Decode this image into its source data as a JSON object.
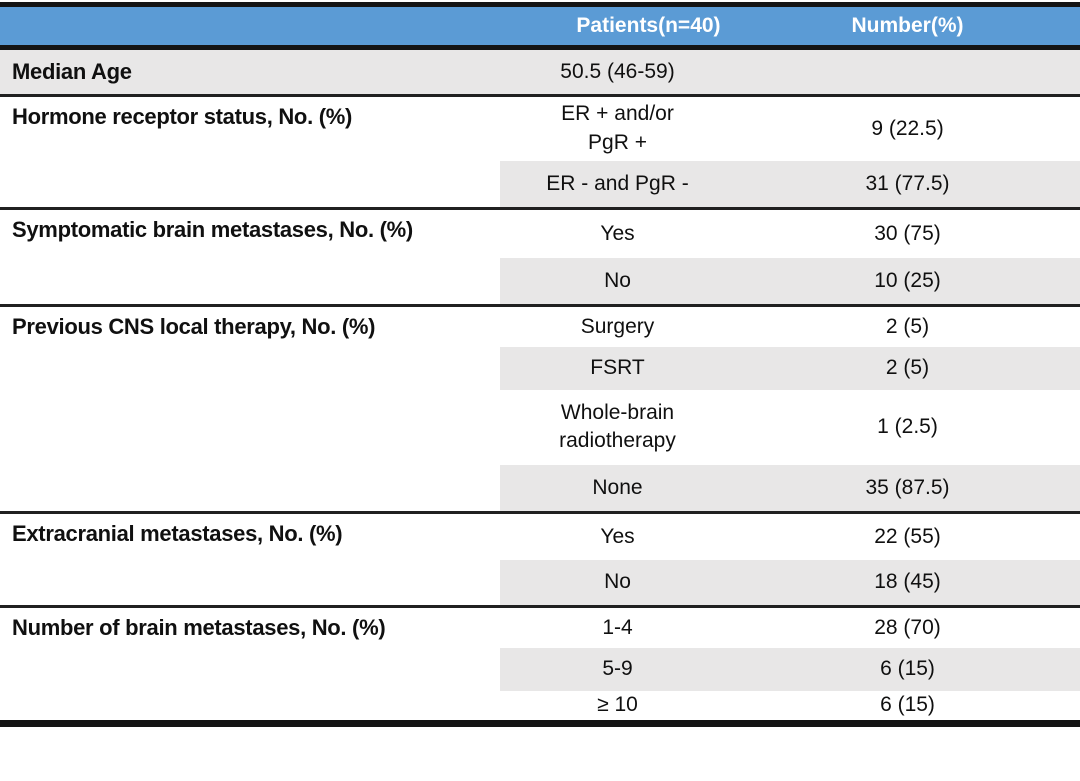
{
  "table": {
    "header": {
      "col1": "",
      "patients": "Patients(n=40)",
      "number": "Number(%)"
    },
    "groups": [
      {
        "label": "Median Age",
        "rows": [
          {
            "value": "50.5 (46-59)",
            "number": ""
          }
        ]
      },
      {
        "label": "Hormone receptor status, No. (%)",
        "rows": [
          {
            "value": "ER + and/or\nPgR +",
            "number": "9 (22.5)"
          },
          {
            "value": "ER - and PgR -",
            "number": "31 (77.5)"
          }
        ]
      },
      {
        "label": "Symptomatic brain metastases, No. (%)",
        "rows": [
          {
            "value": "Yes",
            "number": "30 (75)"
          },
          {
            "value": "No",
            "number": "10 (25)"
          }
        ]
      },
      {
        "label": "Previous CNS local therapy, No. (%)",
        "rows": [
          {
            "value": "Surgery",
            "number": "2 (5)"
          },
          {
            "value": "FSRT",
            "number": "2 (5)"
          },
          {
            "value": "Whole-brain\nradiotherapy",
            "number": "1 (2.5)"
          },
          {
            "value": "None",
            "number": "35 (87.5)"
          }
        ]
      },
      {
        "label": "Extracranial metastases, No. (%)",
        "rows": [
          {
            "value": "Yes",
            "number": "22 (55)"
          },
          {
            "value": "No",
            "number": "18 (45)"
          }
        ]
      },
      {
        "label": "Number of brain metastases, No. (%)",
        "rows": [
          {
            "value": "1-4",
            "number": "28 (70)"
          },
          {
            "value": "5-9",
            "number": "6 (15)"
          },
          {
            "value": "≥ 10",
            "number": "6 (15)"
          }
        ]
      }
    ],
    "colors": {
      "header_bg": "#5b9bd5",
      "header_text": "#ffffff",
      "band_bg": "#e8e7e7",
      "rule_dark": "#141414"
    }
  }
}
